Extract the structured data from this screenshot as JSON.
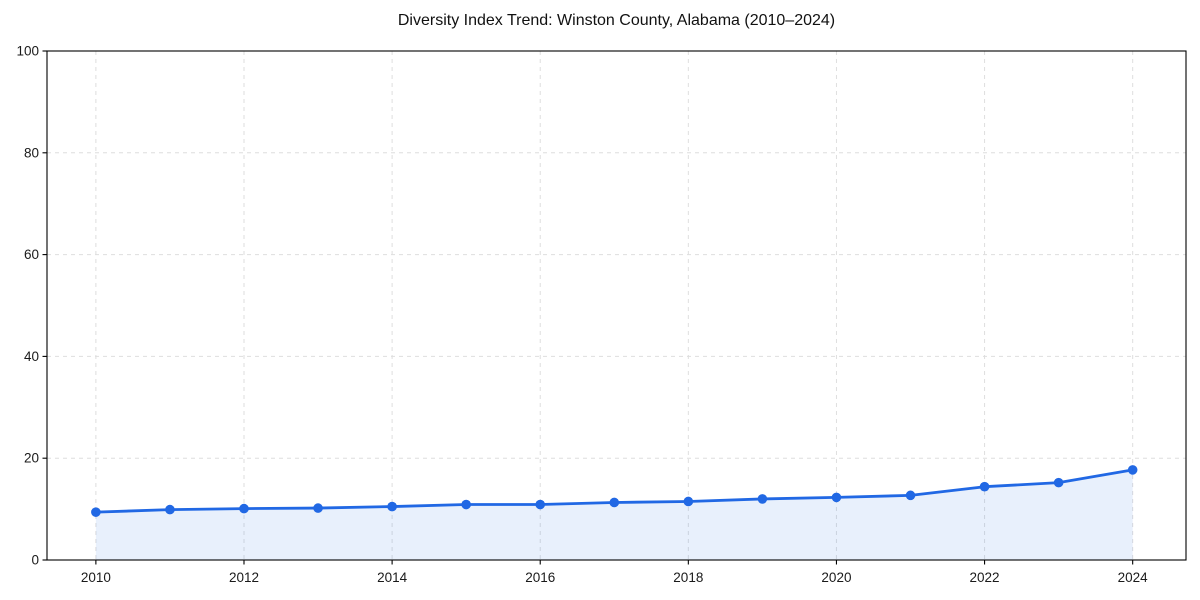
{
  "title": "Diversity Index Trend: Winston County, Alabama (2010–2024)",
  "chart_data": {
    "type": "line",
    "title": "Diversity Index Trend: Winston County, Alabama (2010–2024)",
    "x": [
      2010,
      2011,
      2012,
      2013,
      2014,
      2015,
      2016,
      2017,
      2018,
      2019,
      2020,
      2021,
      2022,
      2023,
      2024
    ],
    "series": [
      {
        "name": "Diversity Index",
        "values": [
          9.4,
          9.9,
          10.1,
          10.2,
          10.5,
          10.9,
          10.9,
          11.3,
          11.5,
          12.0,
          12.3,
          12.7,
          14.4,
          15.2,
          17.7
        ]
      }
    ],
    "xticks": [
      2010,
      2012,
      2014,
      2016,
      2018,
      2020,
      2022,
      2024
    ],
    "yticks": [
      0,
      20,
      40,
      60,
      80,
      100
    ],
    "xlim": [
      2009.34,
      2024.72
    ],
    "ylim": [
      0,
      100
    ],
    "xlabel": "",
    "ylabel": "",
    "legend": "none",
    "grid": true,
    "grid_style": "dashed",
    "marker": "circle",
    "area_fill": true,
    "colors": {
      "line": "#2168e4",
      "marker": "#2168e4",
      "fill": "rgba(33,104,228,0.10)",
      "grid": "#dedede",
      "axis": "#000000",
      "tick_text": "#1a1a1a",
      "background": "#ffffff"
    }
  }
}
